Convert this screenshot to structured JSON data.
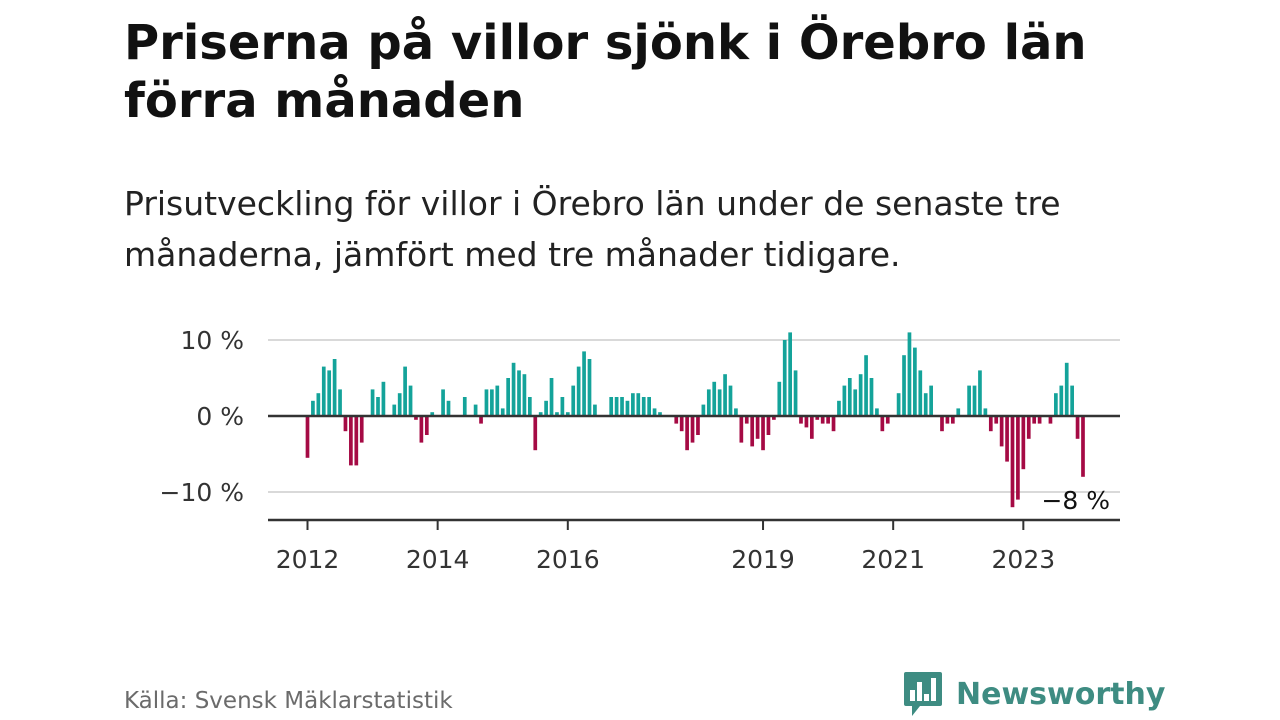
{
  "header": {
    "title": "Priserna på villor sjönk i Örebro län förra månaden",
    "subtitle": "Prisutveckling för villor i Örebro län under de senaste tre månaderna, jämfört med tre månader tidigare."
  },
  "footer": {
    "source": "Källa: Svensk Mäklarstatistik",
    "brand": "Newsworthy"
  },
  "colors": {
    "positive": "#14a39a",
    "negative": "#a50a44",
    "grid": "#d9d9d9",
    "axis": "#333333",
    "brand": "#3e8c82"
  },
  "icons": {
    "logo": "newsworthy-chart-bubble-icon"
  },
  "chart_data": {
    "type": "bar",
    "title": "Priserna på villor sjönk i Örebro län förra månaden",
    "subtitle": "Prisutveckling för villor i Örebro län under de senaste tre månaderna, jämfört med tre månader tidigare.",
    "xlabel": "",
    "ylabel": "",
    "y_unit": "%",
    "ylim": [
      -13.5,
      13.5
    ],
    "yticks": [
      -10,
      0,
      10
    ],
    "ytick_labels": [
      "−10 %",
      "0 %",
      "10 %"
    ],
    "x_start": "2012-01",
    "xticks": [
      "2012",
      "2014",
      "2016",
      "2019",
      "2021",
      "2023"
    ],
    "grid": true,
    "legend": "none",
    "annotation": "−8 %",
    "values": [
      -5.5,
      2.0,
      3.0,
      6.5,
      6.0,
      7.5,
      3.5,
      -2.0,
      -6.5,
      -6.5,
      -3.5,
      0.0,
      3.5,
      2.5,
      4.5,
      0.0,
      1.5,
      3.0,
      6.5,
      4.0,
      -0.5,
      -3.5,
      -2.5,
      0.5,
      0.0,
      3.5,
      2.0,
      0.0,
      0.0,
      2.5,
      0.0,
      1.5,
      -1.0,
      3.5,
      3.5,
      4.0,
      1.0,
      5.0,
      7.0,
      6.0,
      5.5,
      2.5,
      -4.5,
      0.5,
      2.0,
      5.0,
      0.5,
      2.5,
      0.5,
      4.0,
      6.5,
      8.5,
      7.5,
      1.5,
      0.0,
      0.0,
      2.5,
      2.5,
      2.5,
      2.0,
      3.0,
      3.0,
      2.5,
      2.5,
      1.0,
      0.5,
      0.0,
      0.0,
      -1.0,
      -2.0,
      -4.5,
      -3.5,
      -2.5,
      1.5,
      3.5,
      4.5,
      3.5,
      5.5,
      4.0,
      1.0,
      -3.5,
      -1.0,
      -4.0,
      -3.0,
      -4.5,
      -2.5,
      -0.5,
      4.5,
      10.0,
      11.0,
      6.0,
      -1.0,
      -1.5,
      -3.0,
      -0.5,
      -1.0,
      -1.0,
      -2.0,
      2.0,
      4.0,
      5.0,
      3.5,
      5.5,
      8.0,
      5.0,
      1.0,
      -2.0,
      -1.0,
      0.0,
      3.0,
      8.0,
      11.0,
      9.0,
      6.0,
      3.0,
      4.0,
      0.0,
      -2.0,
      -1.0,
      -1.0,
      1.0,
      0.0,
      4.0,
      4.0,
      6.0,
      1.0,
      -2.0,
      -1.0,
      -4.0,
      -6.0,
      -12.0,
      -11.0,
      -7.0,
      -3.0,
      -1.0,
      -1.0,
      0.0,
      -1.0,
      3.0,
      4.0,
      7.0,
      4.0,
      -3.0,
      -8.0
    ]
  }
}
